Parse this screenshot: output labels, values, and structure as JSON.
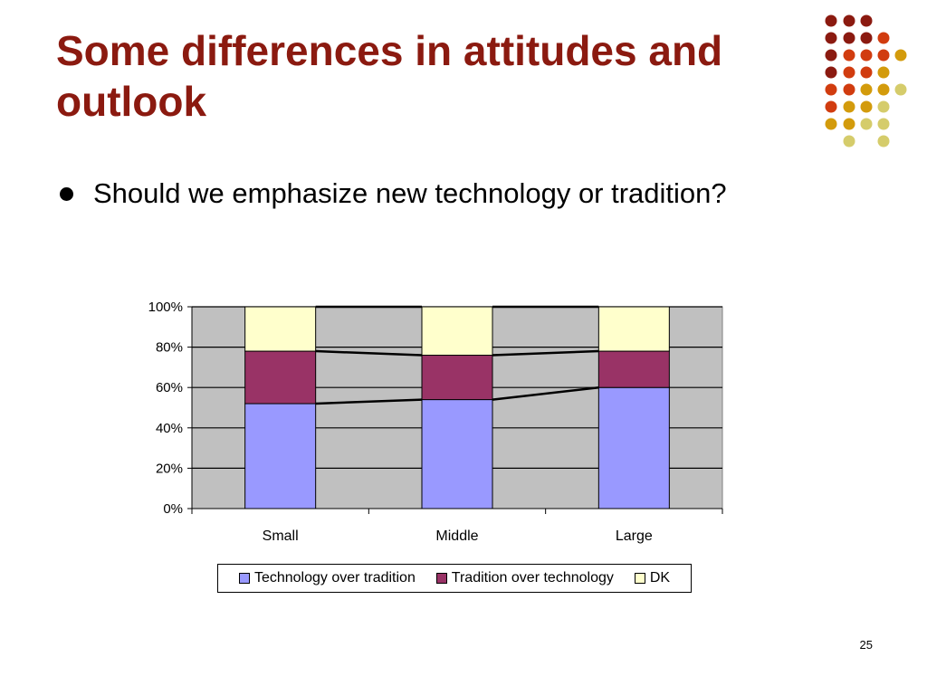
{
  "slide": {
    "title": "Some differences in attitudes and outlook",
    "bullet": "Should we emphasize new technology or tradition?",
    "page_number": "25"
  },
  "decoration": {
    "dot_colors": [
      "#8b1a10",
      "#d13c0f",
      "#d39b0c",
      "#d5cc6b"
    ]
  },
  "chart_data": {
    "type": "bar",
    "stacked": true,
    "percent_scale": true,
    "categories": [
      "Small",
      "Middle",
      "Large"
    ],
    "series": [
      {
        "name": "Technology over tradition",
        "values": [
          52,
          54,
          60
        ],
        "color": "#9999ff"
      },
      {
        "name": "Tradition over technology",
        "values": [
          26,
          22,
          18
        ],
        "color": "#993366"
      },
      {
        "name": "DK",
        "values": [
          22,
          24,
          22
        ],
        "color": "#ffffcc"
      }
    ],
    "y_ticks": [
      "0%",
      "20%",
      "40%",
      "60%",
      "80%",
      "100%"
    ],
    "ylim": [
      0,
      100
    ],
    "series_lines": true,
    "grid": true,
    "plot_background": "#c0c0c0",
    "legend_position": "bottom"
  }
}
